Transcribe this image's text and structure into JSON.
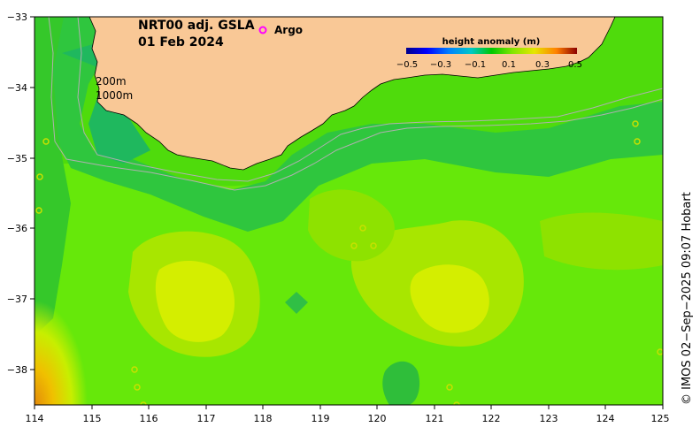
{
  "title": {
    "line1": "NRT00 adj. GSLA",
    "line2": "01 Feb 2024"
  },
  "argo": {
    "symbol": "o",
    "label": "Argo",
    "color": "#ff00ff"
  },
  "legend": {
    "title": "height anomaly (m)",
    "ticks": [
      "−0.5",
      "−0.3",
      "−0.1",
      "0.1",
      "0.3",
      "0.5"
    ]
  },
  "isobaths": {
    "shallow": "200m",
    "deep": "1000m"
  },
  "axes": {
    "x_ticks": [
      "114",
      "115",
      "116",
      "117",
      "118",
      "119",
      "120",
      "121",
      "122",
      "123",
      "124",
      "125"
    ],
    "y_ticks": [
      "−33",
      "−34",
      "−35",
      "−36",
      "−37",
      "−38"
    ],
    "lon_range": [
      114,
      125
    ],
    "lat_range": [
      -33,
      -38.5
    ]
  },
  "credit": "© IMOS 02−Sep−2025 09:07 Hobart",
  "colors": {
    "land": "#f9c896",
    "ocean_base": "#55e30d",
    "coast": "#000000",
    "isobath": "#b0b0b0"
  },
  "anomaly_field": [
    {
      "name": "mid-green-west",
      "level": 0.05
    },
    {
      "name": "dark-green-shelf",
      "level": -0.02
    },
    {
      "name": "yellow-green-eddy-west",
      "level": 0.12
    },
    {
      "name": "yellow-eddy-west-core",
      "level": 0.18
    },
    {
      "name": "yellow-green-eddy-east",
      "level": 0.12
    },
    {
      "name": "yellow-eddy-east-core",
      "level": 0.18
    },
    {
      "name": "orange-southwest-corner",
      "level": 0.35
    }
  ]
}
